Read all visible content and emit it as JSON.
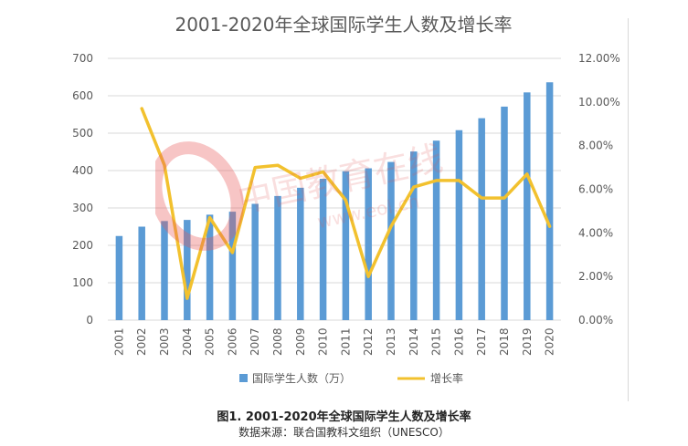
{
  "chart_data": {
    "type": "bar+line",
    "title": "2001-2020年全球国际学生人数及增长率",
    "categories": [
      "2001",
      "2002",
      "2003",
      "2004",
      "2005",
      "2006",
      "2007",
      "2008",
      "2009",
      "2010",
      "2011",
      "2012",
      "2013",
      "2014",
      "2015",
      "2016",
      "2017",
      "2018",
      "2019",
      "2020"
    ],
    "series": [
      {
        "name": "国际学生人数（万）",
        "type": "bar",
        "axis": "left",
        "color": "#5b9bd5",
        "values": [
          225,
          250,
          265,
          268,
          282,
          290,
          311,
          332,
          354,
          378,
          398,
          406,
          423,
          451,
          480,
          508,
          540,
          571,
          609,
          636
        ]
      },
      {
        "name": "增长率",
        "type": "line",
        "axis": "right",
        "color": "#f2c12e",
        "values": [
          null,
          9.7,
          7.1,
          1.0,
          4.7,
          3.1,
          7.0,
          7.1,
          6.5,
          6.8,
          5.5,
          2.0,
          4.3,
          6.1,
          6.4,
          6.4,
          5.6,
          5.6,
          6.7,
          4.3
        ]
      }
    ],
    "y_left": {
      "ylim": [
        0,
        700
      ],
      "ticks": [
        "0",
        "100",
        "200",
        "300",
        "400",
        "500",
        "600",
        "700"
      ]
    },
    "y_right": {
      "ylim": [
        0,
        12
      ],
      "ticks": [
        "0.00%",
        "2.00%",
        "4.00%",
        "6.00%",
        "8.00%",
        "10.00%",
        "12.00%"
      ]
    },
    "grid": true,
    "legend_position": "bottom"
  },
  "caption": {
    "main": "图1. 2001-2020年全球国际学生人数及增长率",
    "sub": "数据来源：联合国教科文组织（UNESCO）"
  },
  "watermark": {
    "text": "中国教育在线",
    "url": "www.eol.cn"
  }
}
